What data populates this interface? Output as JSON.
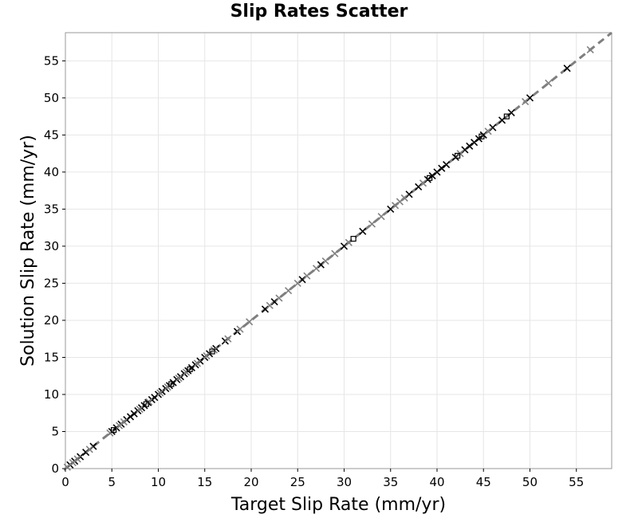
{
  "chart_data": {
    "type": "scatter",
    "title": "Slip Rates Scatter",
    "xlabel": "Target Slip Rate (mm/yr)",
    "ylabel": "Solution Slip Rate (mm/yr)",
    "xlim": [
      0,
      58.8
    ],
    "ylim": [
      0,
      58.8
    ],
    "xticks": [
      0,
      5,
      10,
      15,
      20,
      25,
      30,
      35,
      40,
      45,
      50,
      55
    ],
    "yticks": [
      0,
      5,
      10,
      15,
      20,
      25,
      30,
      35,
      40,
      45,
      50,
      55
    ],
    "grid": true,
    "reference_line": {
      "style": "dashed",
      "color": "#7f7f7f",
      "x": [
        0,
        58.8
      ],
      "y": [
        0,
        58.8
      ]
    },
    "colors": {
      "marker_dark": "#000000",
      "marker_gray": "#808080",
      "grid": "#e6e6e6",
      "frame": "#999999"
    },
    "series": [
      {
        "marker": "x",
        "color": "#000000",
        "x": [
          0.5,
          1.0,
          1.6,
          2.2,
          3.0,
          5.0,
          5.5,
          6.0,
          6.6,
          7.0,
          7.4,
          7.8,
          8.2,
          8.5,
          8.9,
          9.3,
          9.6,
          10.0,
          10.4,
          10.8,
          11.2,
          11.6,
          12.0,
          12.4,
          12.8,
          13.2,
          13.6,
          14.0,
          14.5,
          15.0,
          15.5,
          16.2,
          17.2,
          18.5,
          21.5,
          22.5,
          25.5,
          27.5,
          30.0,
          32.0,
          35.0,
          37.0,
          38.0,
          39.0,
          39.5,
          40.0,
          40.5,
          41.0,
          42.0,
          43.0,
          43.5,
          44.0,
          44.5,
          45.0,
          46.0,
          47.0,
          48.0,
          50.0,
          54.0
        ],
        "y": [
          0.5,
          1.0,
          1.6,
          2.2,
          3.0,
          5.0,
          5.5,
          6.0,
          6.6,
          7.0,
          7.4,
          7.8,
          8.2,
          8.5,
          8.9,
          9.3,
          9.6,
          10.0,
          10.4,
          10.8,
          11.2,
          11.6,
          12.0,
          12.4,
          12.8,
          13.2,
          13.6,
          14.0,
          14.5,
          15.0,
          15.5,
          16.2,
          17.2,
          18.5,
          21.5,
          22.5,
          25.5,
          27.5,
          30.0,
          32.0,
          35.0,
          37.0,
          38.0,
          39.0,
          39.5,
          40.0,
          40.5,
          41.0,
          42.0,
          43.0,
          43.5,
          44.0,
          44.5,
          45.0,
          46.0,
          47.0,
          48.0,
          50.0,
          54.0
        ]
      },
      {
        "marker": "x",
        "color": "#808080",
        "x": [
          0.2,
          0.8,
          1.3,
          2.6,
          4.8,
          5.8,
          6.3,
          8.0,
          9.0,
          10.2,
          11.0,
          12.2,
          13.0,
          14.2,
          15.2,
          16.0,
          17.5,
          18.8,
          19.8,
          22.0,
          23.0,
          24.0,
          25.0,
          26.0,
          27.0,
          28.0,
          29.0,
          30.5,
          33.0,
          34.0,
          35.5,
          36.0,
          36.5,
          38.5,
          42.5,
          45.5,
          49.5,
          52.0,
          56.5
        ],
        "y": [
          0.2,
          0.8,
          1.3,
          2.6,
          4.8,
          5.8,
          6.3,
          8.0,
          9.0,
          10.2,
          11.0,
          12.2,
          13.0,
          14.2,
          15.2,
          16.0,
          17.5,
          18.8,
          19.8,
          22.0,
          23.0,
          24.0,
          25.0,
          26.0,
          27.0,
          28.0,
          29.0,
          30.5,
          33.0,
          34.0,
          35.5,
          36.0,
          36.5,
          38.5,
          42.5,
          45.5,
          49.5,
          52.0,
          56.5
        ]
      },
      {
        "marker": "square",
        "color": "#000000",
        "x": [
          5.2,
          8.7,
          11.4,
          13.4,
          15.8,
          31.0,
          39.2,
          42.2,
          44.8,
          47.5
        ],
        "y": [
          5.2,
          8.7,
          11.4,
          13.4,
          15.8,
          31.0,
          39.2,
          42.2,
          44.8,
          47.5
        ]
      }
    ]
  }
}
